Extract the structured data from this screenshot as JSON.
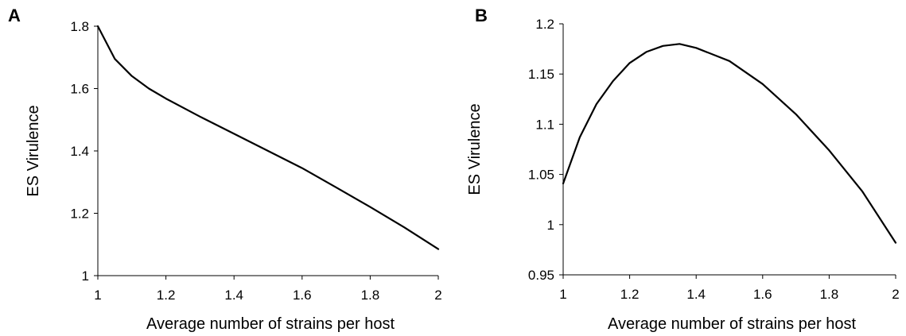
{
  "chart_data": [
    {
      "type": "line",
      "panel_label": "A",
      "xlabel": "Average number of strains per host",
      "ylabel": "ES Virulence",
      "xlim": [
        1,
        2
      ],
      "ylim": [
        1,
        1.8
      ],
      "xticks": [
        "1",
        "1.2",
        "1.4",
        "1.6",
        "1.8",
        "2"
      ],
      "yticks": [
        "1",
        "1.2",
        "1.4",
        "1.6",
        "1.8"
      ],
      "grid": false,
      "series": [
        {
          "color": "#000000",
          "x": [
            1.0,
            1.05,
            1.1,
            1.15,
            1.2,
            1.3,
            1.4,
            1.5,
            1.6,
            1.7,
            1.8,
            1.9,
            2.0
          ],
          "y": [
            1.8,
            1.695,
            1.64,
            1.6,
            1.568,
            1.51,
            1.455,
            1.4,
            1.345,
            1.283,
            1.22,
            1.155,
            1.085
          ]
        }
      ]
    },
    {
      "type": "line",
      "panel_label": "B",
      "xlabel": "Average number of strains per host",
      "ylabel": "ES Virulence",
      "xlim": [
        1,
        2
      ],
      "ylim": [
        0.95,
        1.2
      ],
      "xticks": [
        "1",
        "1.2",
        "1.4",
        "1.6",
        "1.8",
        "2"
      ],
      "yticks": [
        "0.95",
        "1",
        "1.05",
        "1.1",
        "1.15",
        "1.2"
      ],
      "grid": false,
      "series": [
        {
          "color": "#000000",
          "x": [
            1.0,
            1.05,
            1.1,
            1.15,
            1.2,
            1.25,
            1.3,
            1.35,
            1.4,
            1.5,
            1.6,
            1.7,
            1.8,
            1.9,
            2.0
          ],
          "y": [
            1.041,
            1.087,
            1.12,
            1.143,
            1.161,
            1.172,
            1.178,
            1.18,
            1.176,
            1.163,
            1.14,
            1.11,
            1.074,
            1.033,
            0.982
          ]
        }
      ]
    }
  ]
}
